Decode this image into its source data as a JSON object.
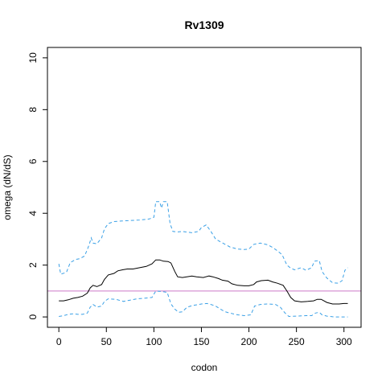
{
  "chart_data": {
    "type": "line",
    "title": "Rv1309",
    "xlabel": "codon",
    "ylabel": "omega (dN/dS)",
    "xlim": [
      -12,
      318
    ],
    "ylim": [
      -0.4,
      10.4
    ],
    "xticks": [
      0,
      50,
      100,
      150,
      200,
      250,
      300
    ],
    "yticks": [
      0,
      2,
      4,
      6,
      8,
      10
    ],
    "reference_line": {
      "y": 1,
      "color": "#cc79c8"
    },
    "grid": false,
    "series": [
      {
        "style": "solid",
        "color": "#000000",
        "points": [
          [
            0,
            0.62
          ],
          [
            5,
            0.62
          ],
          [
            10,
            0.66
          ],
          [
            15,
            0.72
          ],
          [
            20,
            0.75
          ],
          [
            25,
            0.8
          ],
          [
            30,
            0.92
          ],
          [
            33,
            1.12
          ],
          [
            36,
            1.22
          ],
          [
            40,
            1.17
          ],
          [
            45,
            1.25
          ],
          [
            48,
            1.45
          ],
          [
            52,
            1.62
          ],
          [
            58,
            1.68
          ],
          [
            62,
            1.78
          ],
          [
            67,
            1.82
          ],
          [
            72,
            1.85
          ],
          [
            78,
            1.85
          ],
          [
            85,
            1.9
          ],
          [
            92,
            1.95
          ],
          [
            98,
            2.05
          ],
          [
            102,
            2.2
          ],
          [
            106,
            2.2
          ],
          [
            110,
            2.15
          ],
          [
            115,
            2.14
          ],
          [
            118,
            2.08
          ],
          [
            122,
            1.75
          ],
          [
            125,
            1.55
          ],
          [
            130,
            1.52
          ],
          [
            140,
            1.58
          ],
          [
            145,
            1.55
          ],
          [
            152,
            1.52
          ],
          [
            158,
            1.58
          ],
          [
            162,
            1.55
          ],
          [
            168,
            1.48
          ],
          [
            172,
            1.42
          ],
          [
            178,
            1.38
          ],
          [
            182,
            1.28
          ],
          [
            188,
            1.22
          ],
          [
            195,
            1.2
          ],
          [
            200,
            1.2
          ],
          [
            205,
            1.25
          ],
          [
            208,
            1.35
          ],
          [
            213,
            1.4
          ],
          [
            220,
            1.42
          ],
          [
            225,
            1.35
          ],
          [
            230,
            1.3
          ],
          [
            236,
            1.22
          ],
          [
            240,
            1.0
          ],
          [
            244,
            0.75
          ],
          [
            248,
            0.62
          ],
          [
            255,
            0.58
          ],
          [
            262,
            0.6
          ],
          [
            268,
            0.62
          ],
          [
            272,
            0.68
          ],
          [
            276,
            0.68
          ],
          [
            282,
            0.56
          ],
          [
            288,
            0.5
          ],
          [
            295,
            0.5
          ],
          [
            300,
            0.52
          ],
          [
            304,
            0.52
          ]
        ]
      },
      {
        "style": "dashed",
        "color": "#3aa0e6",
        "points": [
          [
            0,
            2.05
          ],
          [
            2,
            1.65
          ],
          [
            8,
            1.72
          ],
          [
            12,
            2.1
          ],
          [
            18,
            2.22
          ],
          [
            22,
            2.25
          ],
          [
            27,
            2.35
          ],
          [
            30,
            2.6
          ],
          [
            32,
            2.8
          ],
          [
            34,
            3.05
          ],
          [
            36,
            2.85
          ],
          [
            40,
            2.82
          ],
          [
            45,
            3.05
          ],
          [
            48,
            3.4
          ],
          [
            52,
            3.6
          ],
          [
            58,
            3.68
          ],
          [
            65,
            3.7
          ],
          [
            75,
            3.72
          ],
          [
            85,
            3.74
          ],
          [
            95,
            3.78
          ],
          [
            100,
            3.85
          ],
          [
            102,
            4.45
          ],
          [
            106,
            4.45
          ],
          [
            108,
            4.2
          ],
          [
            110,
            4.45
          ],
          [
            114,
            4.45
          ],
          [
            117,
            3.6
          ],
          [
            120,
            3.3
          ],
          [
            125,
            3.28
          ],
          [
            130,
            3.3
          ],
          [
            140,
            3.25
          ],
          [
            147,
            3.3
          ],
          [
            150,
            3.45
          ],
          [
            155,
            3.55
          ],
          [
            160,
            3.3
          ],
          [
            165,
            3.0
          ],
          [
            170,
            2.9
          ],
          [
            175,
            2.8
          ],
          [
            180,
            2.7
          ],
          [
            188,
            2.62
          ],
          [
            195,
            2.6
          ],
          [
            200,
            2.62
          ],
          [
            205,
            2.8
          ],
          [
            212,
            2.85
          ],
          [
            220,
            2.78
          ],
          [
            225,
            2.68
          ],
          [
            230,
            2.55
          ],
          [
            235,
            2.4
          ],
          [
            240,
            2.0
          ],
          [
            244,
            1.88
          ],
          [
            248,
            1.82
          ],
          [
            255,
            1.9
          ],
          [
            260,
            1.8
          ],
          [
            266,
            1.9
          ],
          [
            269,
            2.15
          ],
          [
            274,
            2.18
          ],
          [
            277,
            1.75
          ],
          [
            282,
            1.5
          ],
          [
            288,
            1.32
          ],
          [
            294,
            1.3
          ],
          [
            298,
            1.4
          ],
          [
            301,
            1.8
          ],
          [
            304,
            1.9
          ]
        ]
      },
      {
        "style": "dashed",
        "color": "#3aa0e6",
        "points": [
          [
            0,
            0.02
          ],
          [
            5,
            0.05
          ],
          [
            10,
            0.1
          ],
          [
            15,
            0.12
          ],
          [
            20,
            0.1
          ],
          [
            25,
            0.1
          ],
          [
            30,
            0.15
          ],
          [
            33,
            0.38
          ],
          [
            36,
            0.48
          ],
          [
            40,
            0.38
          ],
          [
            45,
            0.42
          ],
          [
            48,
            0.6
          ],
          [
            52,
            0.7
          ],
          [
            60,
            0.68
          ],
          [
            68,
            0.6
          ],
          [
            75,
            0.65
          ],
          [
            82,
            0.7
          ],
          [
            90,
            0.72
          ],
          [
            98,
            0.75
          ],
          [
            102,
            1.0
          ],
          [
            108,
            0.98
          ],
          [
            114,
            0.95
          ],
          [
            118,
            0.5
          ],
          [
            122,
            0.3
          ],
          [
            126,
            0.18
          ],
          [
            130,
            0.2
          ],
          [
            135,
            0.38
          ],
          [
            142,
            0.45
          ],
          [
            150,
            0.5
          ],
          [
            156,
            0.52
          ],
          [
            160,
            0.48
          ],
          [
            165,
            0.42
          ],
          [
            170,
            0.3
          ],
          [
            175,
            0.2
          ],
          [
            180,
            0.15
          ],
          [
            188,
            0.08
          ],
          [
            195,
            0.05
          ],
          [
            202,
            0.08
          ],
          [
            206,
            0.42
          ],
          [
            212,
            0.48
          ],
          [
            220,
            0.5
          ],
          [
            228,
            0.48
          ],
          [
            233,
            0.38
          ],
          [
            238,
            0.15
          ],
          [
            242,
            0.02
          ],
          [
            250,
            0.03
          ],
          [
            260,
            0.05
          ],
          [
            266,
            0.05
          ],
          [
            270,
            0.15
          ],
          [
            274,
            0.18
          ],
          [
            277,
            0.08
          ],
          [
            282,
            0.03
          ],
          [
            290,
            0.0
          ],
          [
            300,
            0.0
          ],
          [
            304,
            0.0
          ]
        ]
      }
    ]
  }
}
